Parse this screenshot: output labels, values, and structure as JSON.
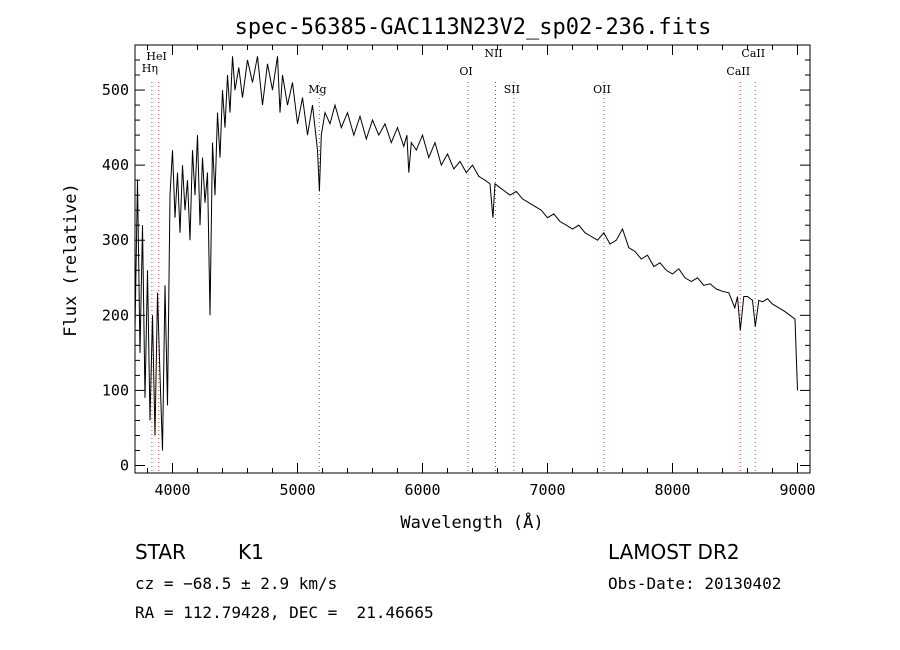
{
  "chart_data": {
    "type": "line",
    "title": "spec-56385-GAC113N23V2_sp02-236.fits",
    "xlabel": "Wavelength (Å)",
    "ylabel": "Flux (relative)",
    "xlim": [
      3700,
      9100
    ],
    "ylim": [
      -10,
      560
    ],
    "x_ticks": [
      4000,
      5000,
      6000,
      7000,
      8000,
      9000
    ],
    "x_tick_labels": [
      "4000",
      "5000",
      "6000",
      "7000",
      "8000",
      "9000"
    ],
    "y_ticks": [
      0,
      100,
      200,
      300,
      400,
      500
    ],
    "y_tick_labels": [
      "0",
      "100",
      "200",
      "300",
      "400",
      "500"
    ],
    "grid": false,
    "series": [
      {
        "x": [
          3700,
          3720,
          3740,
          3760,
          3780,
          3800,
          3820,
          3840,
          3860,
          3880,
          3900,
          3920,
          3940,
          3960,
          3980,
          4000,
          4020,
          4040,
          4060,
          4080,
          4100,
          4120,
          4140,
          4160,
          4180,
          4200,
          4220,
          4240,
          4260,
          4280,
          4300,
          4320,
          4340,
          4360,
          4380,
          4400,
          4420,
          4440,
          4460,
          4480,
          4500,
          4530,
          4560,
          4600,
          4640,
          4680,
          4720,
          4760,
          4800,
          4840,
          4860,
          4880,
          4920,
          4960,
          5000,
          5040,
          5080,
          5120,
          5160,
          5175,
          5190,
          5220,
          5260,
          5300,
          5350,
          5400,
          5450,
          5500,
          5550,
          5600,
          5650,
          5700,
          5750,
          5800,
          5850,
          5875,
          5890,
          5910,
          5950,
          6000,
          6050,
          6100,
          6150,
          6200,
          6250,
          6300,
          6350,
          6400,
          6450,
          6500,
          6540,
          6563,
          6580,
          6620,
          6660,
          6700,
          6750,
          6800,
          6850,
          6900,
          6950,
          7000,
          7050,
          7100,
          7150,
          7200,
          7250,
          7300,
          7350,
          7400,
          7450,
          7500,
          7550,
          7600,
          7650,
          7700,
          7750,
          7800,
          7850,
          7900,
          7950,
          8000,
          8050,
          8100,
          8150,
          8200,
          8250,
          8300,
          8350,
          8400,
          8450,
          8498,
          8520,
          8542,
          8570,
          8600,
          8640,
          8662,
          8690,
          8720,
          8760,
          8800,
          8850,
          8900,
          8940,
          8980,
          9000
        ],
        "y": [
          180,
          380,
          150,
          320,
          90,
          260,
          60,
          200,
          40,
          230,
          120,
          20,
          240,
          80,
          360,
          420,
          330,
          390,
          310,
          400,
          340,
          380,
          300,
          420,
          360,
          440,
          320,
          410,
          350,
          390,
          200,
          430,
          360,
          470,
          410,
          500,
          450,
          520,
          470,
          545,
          500,
          530,
          490,
          540,
          510,
          545,
          480,
          535,
          500,
          545,
          470,
          520,
          480,
          510,
          455,
          490,
          440,
          480,
          420,
          365,
          440,
          470,
          455,
          480,
          450,
          470,
          440,
          465,
          435,
          460,
          440,
          455,
          430,
          450,
          425,
          440,
          390,
          430,
          420,
          440,
          410,
          430,
          400,
          415,
          395,
          405,
          390,
          400,
          385,
          380,
          375,
          330,
          375,
          370,
          365,
          360,
          365,
          355,
          350,
          345,
          340,
          330,
          335,
          325,
          320,
          315,
          320,
          310,
          305,
          300,
          310,
          295,
          300,
          315,
          290,
          285,
          275,
          280,
          265,
          270,
          260,
          255,
          262,
          250,
          245,
          250,
          240,
          242,
          235,
          232,
          230,
          210,
          225,
          180,
          225,
          225,
          220,
          185,
          220,
          218,
          222,
          215,
          210,
          205,
          200,
          195,
          100
        ]
      }
    ],
    "lines": [
      {
        "label": "Hη",
        "x": 3835
      },
      {
        "label": "HeI",
        "x": 3889
      },
      {
        "label": "Mg",
        "x": 5175
      },
      {
        "label": "OI",
        "x": 6364
      },
      {
        "label": "NII",
        "x": 6584
      },
      {
        "label": "SII",
        "x": 6731
      },
      {
        "label": "OII",
        "x": 7452
      },
      {
        "label": "CaII",
        "x": 8542
      },
      {
        "label": "CaII",
        "x": 8662
      }
    ]
  },
  "footer": {
    "object_type": "STAR",
    "subclass": "K1",
    "survey": "LAMOST DR2",
    "cz": "cz = −68.5 ± 2.9 km/s",
    "obs_date": "Obs-Date: 20130402",
    "coords": "RA = 112.79428, DEC =  21.46665"
  }
}
